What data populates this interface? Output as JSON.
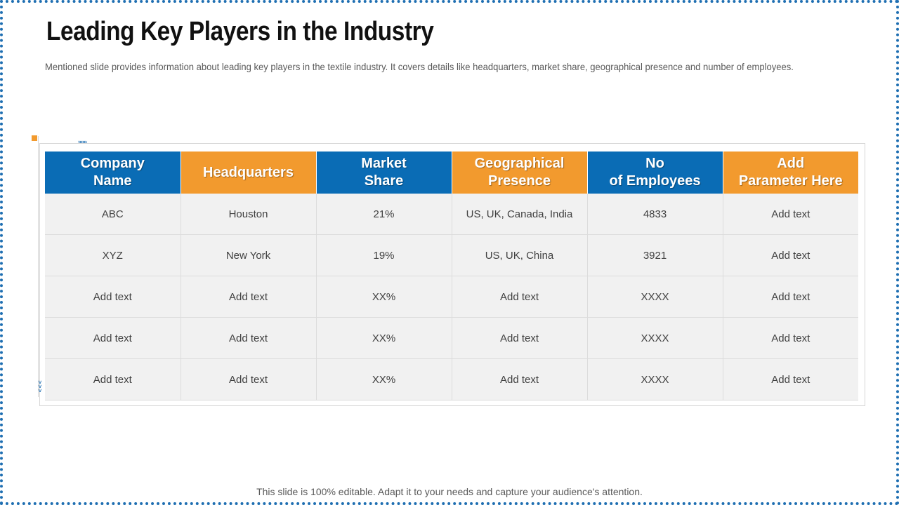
{
  "slide": {
    "title": "Leading Key Players in the Industry",
    "subtitle": "Mentioned slide provides information about leading key players in the textile industry. It covers details like headquarters, market share, geographical presence and number of employees.",
    "footer": "This slide is 100% editable. Adapt it to your needs and capture your audience's attention."
  },
  "colors": {
    "header_blue": "#0a6cb5",
    "header_orange": "#f29a2e",
    "cell_background": "#f1f1f1",
    "frame_border": "#1f6fb2"
  },
  "decorations": {
    "chevrons_right": "»»»",
    "chevrons_down": "˅˅˅"
  },
  "table": {
    "headers": [
      {
        "label": "Company\nName",
        "color": "blue"
      },
      {
        "label": "Headquarters",
        "color": "orange"
      },
      {
        "label": "Market\nShare",
        "color": "blue"
      },
      {
        "label": "Geographical\nPresence",
        "color": "orange"
      },
      {
        "label": "No\nof Employees",
        "color": "blue"
      },
      {
        "label": "Add\nParameter Here",
        "color": "orange"
      }
    ],
    "rows": [
      [
        "ABC",
        "Houston",
        "21%",
        "US, UK, Canada, India",
        "4833",
        "Add text"
      ],
      [
        "XYZ",
        "New York",
        "19%",
        "US, UK, China",
        "3921",
        "Add text"
      ],
      [
        "Add text",
        "Add text",
        "XX%",
        "Add text",
        "XXXX",
        "Add text"
      ],
      [
        "Add text",
        "Add text",
        "XX%",
        "Add text",
        "XXXX",
        "Add text"
      ],
      [
        "Add text",
        "Add text",
        "XX%",
        "Add text",
        "XXXX",
        "Add text"
      ]
    ]
  }
}
